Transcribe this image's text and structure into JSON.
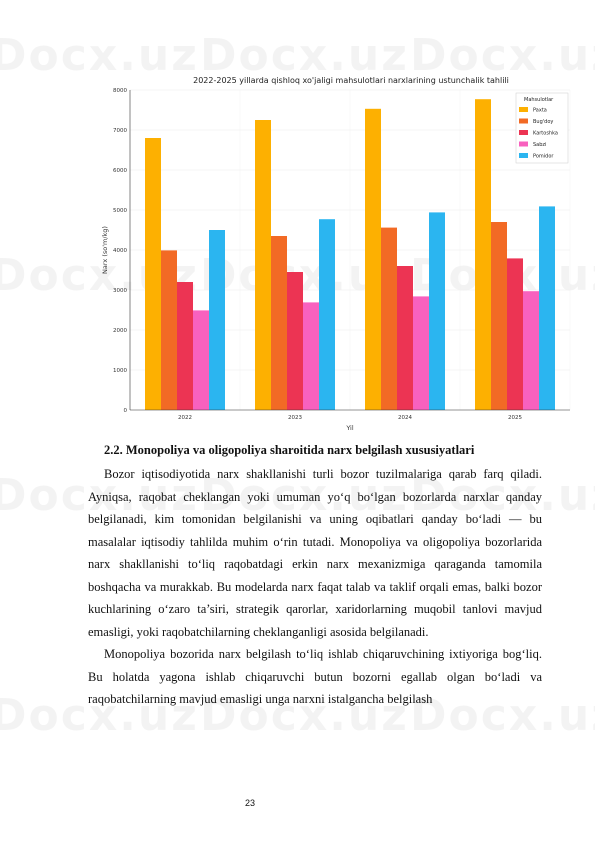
{
  "chart_data": {
    "type": "bar",
    "title": "2022-2025 yillarda qishloq xo'jaligi mahsulotlari narxlarining ustunchalik tahlili",
    "xlabel": "Yil",
    "ylabel": "Narx (so'm/kg)",
    "categories": [
      "2022",
      "2023",
      "2024",
      "2025"
    ],
    "ylim": [
      0,
      8000
    ],
    "yticks": [
      0,
      1000,
      2000,
      3000,
      4000,
      5000,
      6000,
      7000,
      8000
    ],
    "legend_title": "Mahsulotlar",
    "legend_position": "top-right",
    "grid": true,
    "series": [
      {
        "name": "Paxta",
        "color": "#FDB001",
        "values": [
          6800,
          7250,
          7530,
          7770
        ]
      },
      {
        "name": "Bug'doy",
        "color": "#F26A25",
        "values": [
          3990,
          4350,
          4560,
          4700
        ]
      },
      {
        "name": "Kartoshka",
        "color": "#EC3453",
        "values": [
          3200,
          3450,
          3600,
          3790
        ]
      },
      {
        "name": "Sabzi",
        "color": "#F861BE",
        "values": [
          2490,
          2690,
          2840,
          2970
        ]
      },
      {
        "name": "Pomidor",
        "color": "#2BB5F0",
        "values": [
          4500,
          4770,
          4940,
          5090
        ]
      }
    ]
  },
  "document": {
    "heading": "2.2. Monopoliya va oligopoliya sharoitida narx belgilash xususiyatlari",
    "para1": "Bozor iqtisodiyotida narx shakllanishi turli bozor tuzilmalariga qarab farq qiladi. Ayniqsa, raqobat cheklangan yoki umuman yo‘q bo‘lgan bozorlarda narxlar qanday belgilanadi, kim tomonidan belgilanishi va uning oqibatlari qanday bo‘ladi — bu masalalar iqtisodiy tahlilda muhim o‘rin tutadi. Monopoliya va oligopoliya bozorlarida narx shakllanishi to‘liq raqobatdagi erkin narx mexanizmiga qaraganda tamomila boshqacha va murakkab. Bu modelarda narx faqat talab va taklif orqali emas, balki bozor kuchlarining o‘zaro ta’siri, strategik qarorlar, xaridorlarning muqobil tanlovi mavjud emasligi, yoki raqobatchilarning cheklanganligi asosida belgilanadi.",
    "para2": "Monopoliya bozorida narx belgilash to‘liq ishlab chiqaruvchining ixtiyoriga bog‘liq. Bu holatda yagona ishlab chiqaruvchi butun bozorni egallab olgan bo‘ladi va raqobatchilarning mavjud emasligi unga narxni istalgancha belgilash",
    "page_number": "23"
  },
  "watermark": "Docx.uz"
}
